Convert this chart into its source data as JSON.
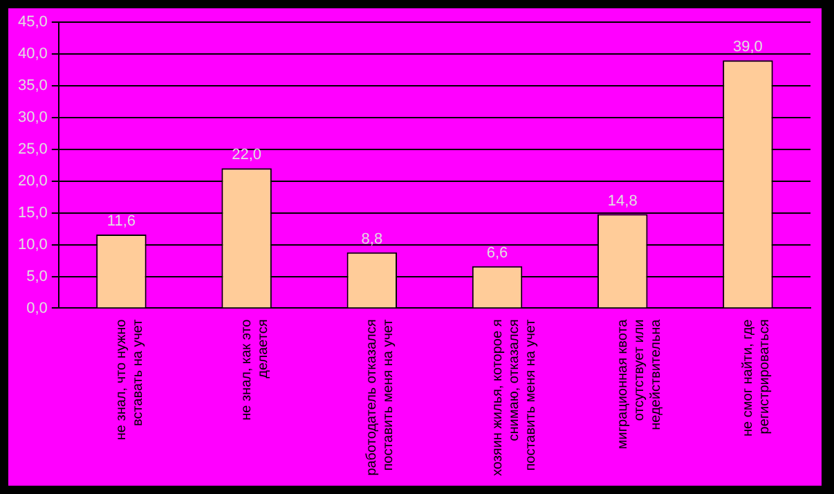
{
  "chart_data": {
    "type": "bar",
    "categories": [
      "не знал, что нужно вставать на учет",
      "не знал, как это делается",
      "работодатель отказался поставить меня на учет",
      "хозяин жилья, которое я снимаю, отказался поставить меня на учет",
      "миграционная квота отсутствует или недействительна",
      "не смог найти, где регистрироваться"
    ],
    "values": [
      11.6,
      22.0,
      8.8,
      6.6,
      14.8,
      39.0
    ],
    "value_labels": [
      "11,6",
      "22,0",
      "8,8",
      "6,6",
      "14,8",
      "39,0"
    ],
    "color": "#ffcc99",
    "ylim": [
      0,
      45
    ],
    "yticks": [
      {
        "value": 0,
        "label": "0,0"
      },
      {
        "value": 5,
        "label": "5,0"
      },
      {
        "value": 10,
        "label": "10,0"
      },
      {
        "value": 15,
        "label": "15,0"
      },
      {
        "value": 20,
        "label": "20,0"
      },
      {
        "value": 25,
        "label": "25,0"
      },
      {
        "value": 30,
        "label": "30,0"
      },
      {
        "value": 35,
        "label": "35,0"
      },
      {
        "value": 40,
        "label": "40,0"
      },
      {
        "value": 45,
        "label": "45,0"
      }
    ],
    "grid": "y"
  }
}
